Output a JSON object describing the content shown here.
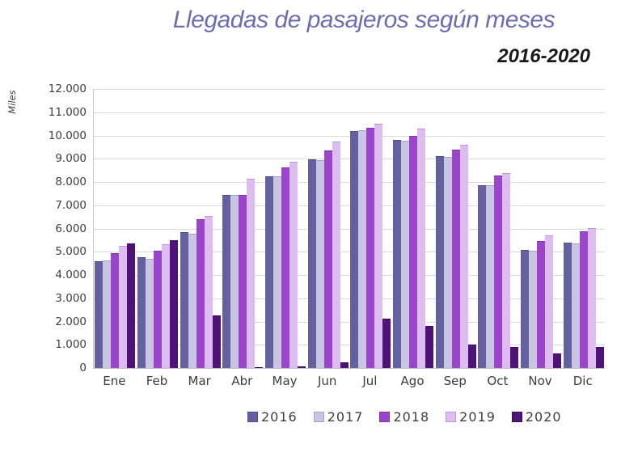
{
  "chart_data": {
    "type": "bar",
    "title": "Llegadas de pasajeros según meses",
    "subtitle": "2016-2020",
    "ylabel": "Miles",
    "xlabel": "",
    "ylim": [
      0,
      12000
    ],
    "ytick_step": 1000,
    "ytick_labels_top_down": [
      "12.000",
      "11.000",
      "10.000",
      "9.000",
      "8.000",
      "7.000",
      "6.000",
      "5.000",
      "4.000",
      "3.000",
      "2.000",
      "1.000",
      "0"
    ],
    "grid": true,
    "legend_position": "bottom",
    "categories": [
      "Ene",
      "Feb",
      "Mar",
      "Abr",
      "May",
      "Jun",
      "Jul",
      "Ago",
      "Sep",
      "Oct",
      "Nov",
      "Dic"
    ],
    "series": [
      {
        "name": "2016",
        "color": "#6361a0",
        "border": "#504e88",
        "values": [
          4600,
          4750,
          5830,
          7460,
          8260,
          8960,
          10200,
          9810,
          9110,
          7850,
          5080,
          5400
        ]
      },
      {
        "name": "2017",
        "color": "#c9c6e1",
        "border": "#a5a2c6",
        "values": [
          4610,
          4710,
          5790,
          7430,
          8260,
          8950,
          10240,
          9790,
          9090,
          7850,
          5040,
          5370
        ]
      },
      {
        "name": "2018",
        "color": "#9b45cd",
        "border": "#8136ad",
        "values": [
          4950,
          5050,
          6410,
          7460,
          8610,
          9340,
          10330,
          9970,
          9390,
          8290,
          5460,
          5890
        ]
      },
      {
        "name": "2019",
        "color": "#ddbcf0",
        "border": "#bf97d9",
        "values": [
          5260,
          5320,
          6530,
          8150,
          8860,
          9730,
          10500,
          10310,
          9590,
          8380,
          5690,
          6030
        ]
      },
      {
        "name": "2020",
        "color": "#4f1278",
        "border": "#3c0a5e",
        "values": [
          5370,
          5500,
          2260,
          47,
          64,
          244,
          2110,
          1820,
          1010,
          910,
          620,
          900
        ]
      }
    ]
  }
}
